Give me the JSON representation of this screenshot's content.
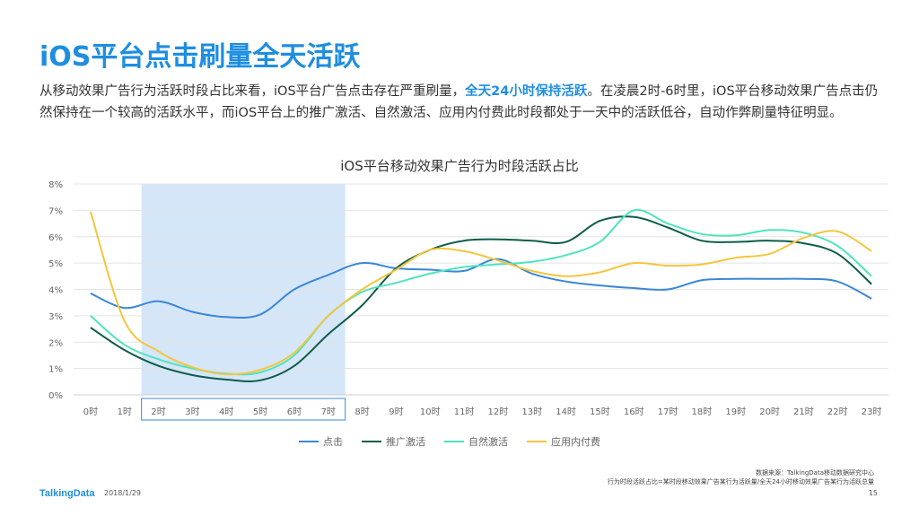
{
  "page": {
    "title": "iOS平台点击刷量全天活跃",
    "desc_part1": "从移动效果广告行为活跃时段占比来看，iOS平台广告点击存在严重刷量，",
    "desc_highlight": "全天24小时保持活跃",
    "desc_part2": "。在凌晨2时-6时里，iOS平台移动效果广告点击仍然保持在一个较高的活跃水平，而iOS平台上的推广激活、自然激活、应用内付费此时段都处于一天中的活跃低谷，自动作弊刷量特征明显。",
    "footer_logo": "TalkingData",
    "footer_date": "2018/1/29",
    "source_line1": "数据来源：TalkingData移动数据研究中心",
    "source_line2": "行为时段活跃占比=某时段移动效果广告某行为活跃量/全天24小时移动效果广告某行为活跃总量",
    "page_number": "15"
  },
  "chart_data": {
    "type": "line",
    "title": "iOS平台移动效果广告行为时段活跃占比",
    "categories": [
      "0时",
      "1时",
      "2时",
      "3时",
      "4时",
      "5时",
      "6时",
      "7时",
      "8时",
      "9时",
      "10时",
      "11时",
      "12时",
      "13时",
      "14时",
      "15时",
      "16时",
      "17时",
      "18时",
      "19时",
      "20时",
      "21时",
      "22时",
      "23时"
    ],
    "ylim": [
      0,
      8
    ],
    "yticks": [
      "0%",
      "1%",
      "2%",
      "3%",
      "4%",
      "5%",
      "6%",
      "7%",
      "8%"
    ],
    "grid": true,
    "legend_position": "bottom",
    "highlight_range": [
      "2时",
      "7时"
    ],
    "highlight_color": "#d4e6f8",
    "series": [
      {
        "name": "点击",
        "color": "#3a87d6",
        "values": [
          3.85,
          3.3,
          3.55,
          3.15,
          2.95,
          3.05,
          4.0,
          4.55,
          5.0,
          4.8,
          4.75,
          4.7,
          5.15,
          4.6,
          4.3,
          4.15,
          4.05,
          4.0,
          4.35,
          4.4,
          4.4,
          4.4,
          4.3,
          3.65
        ]
      },
      {
        "name": "推广激活",
        "color": "#0d5c4a",
        "values": [
          2.55,
          1.7,
          1.1,
          0.75,
          0.58,
          0.55,
          1.1,
          2.3,
          3.4,
          4.8,
          5.5,
          5.85,
          5.9,
          5.85,
          5.8,
          6.6,
          6.75,
          6.35,
          5.85,
          5.8,
          5.85,
          5.75,
          5.35,
          4.2
        ]
      },
      {
        "name": "自然激活",
        "color": "#4fe3bf",
        "values": [
          3.0,
          1.9,
          1.35,
          1.0,
          0.8,
          0.85,
          1.5,
          3.0,
          3.9,
          4.25,
          4.6,
          4.85,
          4.95,
          5.05,
          5.3,
          5.8,
          7.0,
          6.5,
          6.1,
          6.05,
          6.25,
          6.15,
          5.65,
          4.5
        ]
      },
      {
        "name": "应用内付费",
        "color": "#f4c63e",
        "values": [
          6.95,
          2.8,
          1.65,
          1.05,
          0.78,
          0.95,
          1.6,
          3.0,
          4.0,
          4.75,
          5.5,
          5.45,
          5.1,
          4.7,
          4.5,
          4.65,
          5.0,
          4.9,
          4.95,
          5.2,
          5.35,
          5.95,
          6.2,
          5.45
        ]
      }
    ]
  }
}
